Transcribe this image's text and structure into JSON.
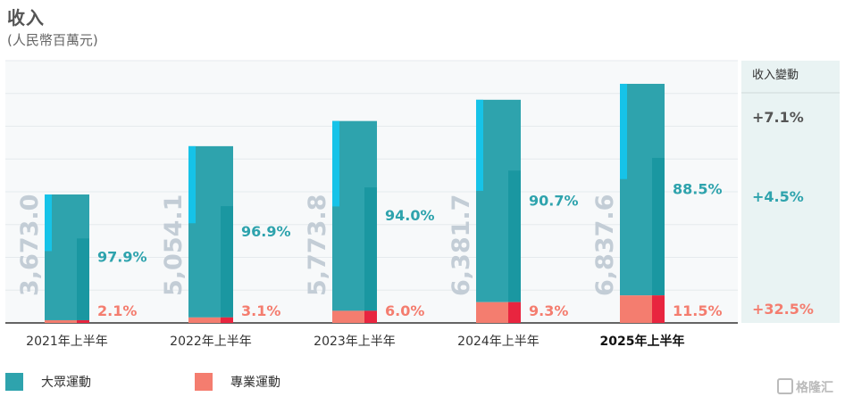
{
  "title": "收入",
  "subtitle": "(人民幣百萬元)",
  "change_header": "收入變動",
  "legend": [
    {
      "label": "大眾運動",
      "color": "#2ea3ad"
    },
    {
      "label": "專業運動",
      "color": "#f47d6f"
    }
  ],
  "colors": {
    "mass": "#2ea3ad",
    "mass_highlight": "#16c3e8",
    "mass_shadow": "#0e8f9a",
    "pro": "#f47d6f",
    "pro_shadow": "#e8253f",
    "total_label": "#c3cdd6",
    "grid": "#e6eaed",
    "sidebar": "#e9f3f3"
  },
  "changes": [
    {
      "text": "+7.1%",
      "color": "#555555"
    },
    {
      "text": "+4.5%",
      "color": "#2ea3ad"
    },
    {
      "text": "+32.5%",
      "color": "#f47d6f"
    }
  ],
  "watermark": "格隆汇",
  "chart_data": {
    "type": "bar",
    "stacked": true,
    "categories": [
      "2021年上半年",
      "2022年上半年",
      "2023年上半年",
      "2024年上半年",
      "2025年上半年"
    ],
    "highlight_category": "2025年上半年",
    "totals": [
      3673.0,
      5054.1,
      5773.8,
      6381.7,
      6837.6
    ],
    "total_labels": [
      "3,673.0",
      "5,054.1",
      "5,773.8",
      "6,381.7",
      "6,837.6"
    ],
    "series": [
      {
        "name": "大眾運動",
        "share_labels": [
          "97.9%",
          "96.9%",
          "94.0%",
          "90.7%",
          "88.5%"
        ],
        "shares": [
          97.9,
          96.9,
          94.0,
          90.7,
          88.5
        ]
      },
      {
        "name": "專業運動",
        "share_labels": [
          "2.1%",
          "3.1%",
          "6.0%",
          "9.3%",
          "11.5%"
        ],
        "shares": [
          2.1,
          3.1,
          6.0,
          9.3,
          11.5
        ]
      }
    ],
    "ylim": [
      0,
      7500
    ],
    "grid": true
  }
}
